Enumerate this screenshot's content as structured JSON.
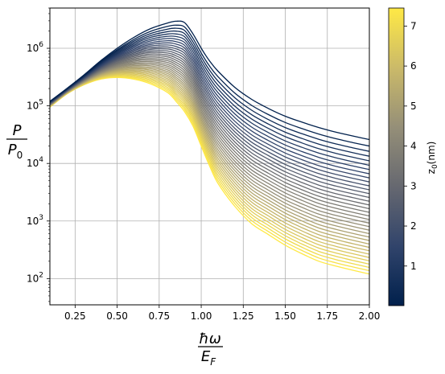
{
  "chart_data": {
    "type": "line",
    "xlabel": "ħω / E_F",
    "ylabel": "P / P_0",
    "xlim": [
      0.1,
      2.0
    ],
    "ylim": [
      35,
      5000000
    ],
    "yscale": "log",
    "grid": true,
    "x_ticks": [
      "0.25",
      "0.50",
      "0.75",
      "1.00",
      "1.25",
      "1.50",
      "1.75",
      "2.00"
    ],
    "y_ticks": [
      {
        "base": "10",
        "exp": "2"
      },
      {
        "base": "10",
        "exp": "3"
      },
      {
        "base": "10",
        "exp": "4"
      },
      {
        "base": "10",
        "exp": "5"
      },
      {
        "base": "10",
        "exp": "6"
      }
    ],
    "colorbar": {
      "label": "z0(nm)",
      "label_main": "z",
      "label_sub": "0",
      "label_unit": "(nm)",
      "range": [
        0.01,
        7.45
      ],
      "ticks": [
        "1",
        "2",
        "3",
        "4",
        "5",
        "6",
        "7"
      ],
      "colormap": "cividis",
      "colors": [
        "#00204c",
        "#31446b",
        "#666870",
        "#958f78",
        "#cbba69",
        "#ffe945"
      ]
    },
    "series_param": {
      "name": "z0 (nm)",
      "min": 0.01,
      "max": 7.45,
      "count": 36
    },
    "series_envelope": {
      "x": [
        0.1,
        0.2,
        0.3,
        0.4,
        0.5,
        0.6,
        0.7,
        0.8,
        0.85,
        0.9,
        0.95,
        1.0,
        1.05,
        1.1,
        1.2,
        1.3,
        1.4,
        1.5,
        1.6,
        1.7,
        1.8,
        1.9,
        2.0
      ],
      "z0_min_values": [
        120000,
        200000,
        340000,
        600000,
        1000000,
        1550000,
        2200000,
        2750000,
        2950000,
        2800000,
        1800000,
        1000000,
        600000,
        400000,
        210000,
        130000,
        90000,
        66000,
        52000,
        42000,
        35000,
        30000,
        26000
      ],
      "z0_max_values": [
        95000,
        160000,
        230000,
        290000,
        310000,
        290000,
        240000,
        170000,
        120000,
        80000,
        45000,
        20000,
        9000,
        4500,
        1800,
        900,
        580,
        380,
        270,
        200,
        165,
        140,
        120
      ]
    }
  }
}
